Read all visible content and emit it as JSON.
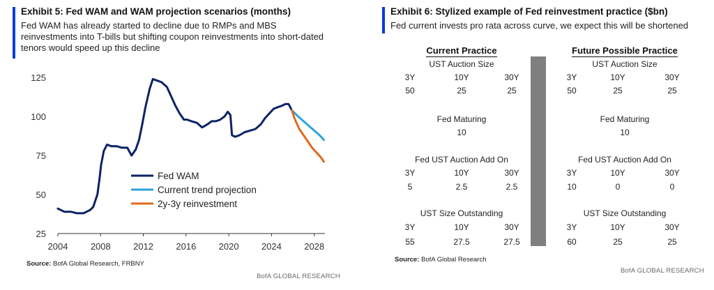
{
  "exhibit5": {
    "title": "Exhibit 5: Fed WAM and WAM projection scenarios (months)",
    "subtitle": "Fed WAM has already started to decline due to RMPs and MBS reinvestments into T-bills but shifting coupon reinvestments into short-dated tenors would speed up this decline",
    "source_label": "Source:",
    "source_text": " BofA Global Research, FRBNY",
    "brand": "BofA GLOBAL RESEARCH"
  },
  "exhibit6": {
    "title": "Exhibit 6: Stylized example of Fed reinvestment practice ($bn)",
    "subtitle": "Fed current invests pro rata across curve, we expect this will be shortened",
    "source_label": "Source:",
    "source_text": " BofA Global Research",
    "brand": "BofA GLOBAL RESEARCH",
    "current": {
      "heading": "Current Practice",
      "auction_size": {
        "label": "UST Auction Size",
        "tenors": [
          "3Y",
          "10Y",
          "30Y"
        ],
        "values": [
          "50",
          "25",
          "25"
        ]
      },
      "fed_maturing": {
        "label": "Fed Maturing",
        "value": "10"
      },
      "add_on": {
        "label": "Fed UST Auction Add On",
        "tenors": [
          "3Y",
          "10Y",
          "30Y"
        ],
        "values": [
          "5",
          "2.5",
          "2.5"
        ]
      },
      "outstanding": {
        "label": "UST Size Outstanding",
        "tenors": [
          "3Y",
          "10Y",
          "30Y"
        ],
        "values": [
          "55",
          "27.5",
          "27.5"
        ]
      }
    },
    "future": {
      "heading": "Future Possible Practice",
      "auction_size": {
        "label": "UST Auction Size",
        "tenors": [
          "3Y",
          "10Y",
          "30Y"
        ],
        "values": [
          "50",
          "25",
          "25"
        ]
      },
      "fed_maturing": {
        "label": "Fed Maturing",
        "value": "10"
      },
      "add_on": {
        "label": "Fed UST Auction Add On",
        "tenors": [
          "3Y",
          "10Y",
          "30Y"
        ],
        "values": [
          "10",
          "0",
          "0"
        ]
      },
      "outstanding": {
        "label": "UST Size Outstanding",
        "tenors": [
          "3Y",
          "10Y",
          "30Y"
        ],
        "values": [
          "60",
          "25",
          "25"
        ]
      }
    }
  },
  "chart_data": {
    "type": "line",
    "title": "Exhibit 5: Fed WAM and WAM projection scenarios (months)",
    "xlabel": "",
    "ylabel": "",
    "xlim": [
      2004,
      2029
    ],
    "ylim": [
      25,
      130
    ],
    "x_ticks": [
      "2004",
      "2008",
      "2012",
      "2016",
      "2020",
      "2024",
      "2028"
    ],
    "y_ticks": [
      "25",
      "50",
      "75",
      "100",
      "125"
    ],
    "grid": false,
    "legend_position": "bottom-center",
    "series": [
      {
        "name": "Fed WAM",
        "color": "#0b2265",
        "x": [
          2004.0,
          2004.6,
          2005.2,
          2005.8,
          2006.4,
          2007.0,
          2007.3,
          2007.7,
          2007.9,
          2008.05,
          2008.3,
          2008.6,
          2009.0,
          2009.5,
          2010.0,
          2010.5,
          2010.9,
          2011.3,
          2011.6,
          2011.9,
          2012.2,
          2012.6,
          2012.9,
          2013.3,
          2013.7,
          2014.2,
          2014.6,
          2015.0,
          2015.4,
          2015.8,
          2016.1,
          2016.5,
          2017.0,
          2017.5,
          2018.0,
          2018.4,
          2018.8,
          2019.2,
          2019.6,
          2019.9,
          2020.15,
          2020.3,
          2020.6,
          2021.0,
          2021.5,
          2022.0,
          2022.5,
          2023.0,
          2023.4,
          2023.8,
          2024.2,
          2024.6,
          2025.0,
          2025.3,
          2025.6,
          2025.9
        ],
        "values": [
          41,
          39,
          39,
          38,
          38,
          40,
          42,
          50,
          60,
          69,
          78,
          82,
          81,
          81,
          80,
          80,
          75,
          79,
          85,
          95,
          106,
          118,
          124,
          123,
          122,
          119,
          113,
          107,
          102,
          98,
          98,
          97,
          96,
          93,
          95,
          97,
          97,
          98,
          100,
          103,
          101,
          88,
          87,
          88,
          90,
          91,
          92,
          95,
          99,
          102,
          105,
          106,
          107,
          108,
          108,
          104
        ]
      },
      {
        "name": "Current trend projection",
        "color": "#2ea3dd",
        "x": [
          2025.9,
          2026.5,
          2027.0,
          2027.5,
          2028.0,
          2028.5,
          2028.9
        ],
        "values": [
          104,
          100,
          97,
          94,
          91,
          88,
          85
        ]
      },
      {
        "name": "2y-3y reinvestment",
        "color": "#e06a1b",
        "x": [
          2025.9,
          2026.2,
          2026.6,
          2027.0,
          2027.4,
          2027.8,
          2028.2,
          2028.6,
          2028.9
        ],
        "values": [
          104,
          98,
          92,
          88,
          84,
          80,
          77,
          74,
          71
        ]
      }
    ]
  }
}
